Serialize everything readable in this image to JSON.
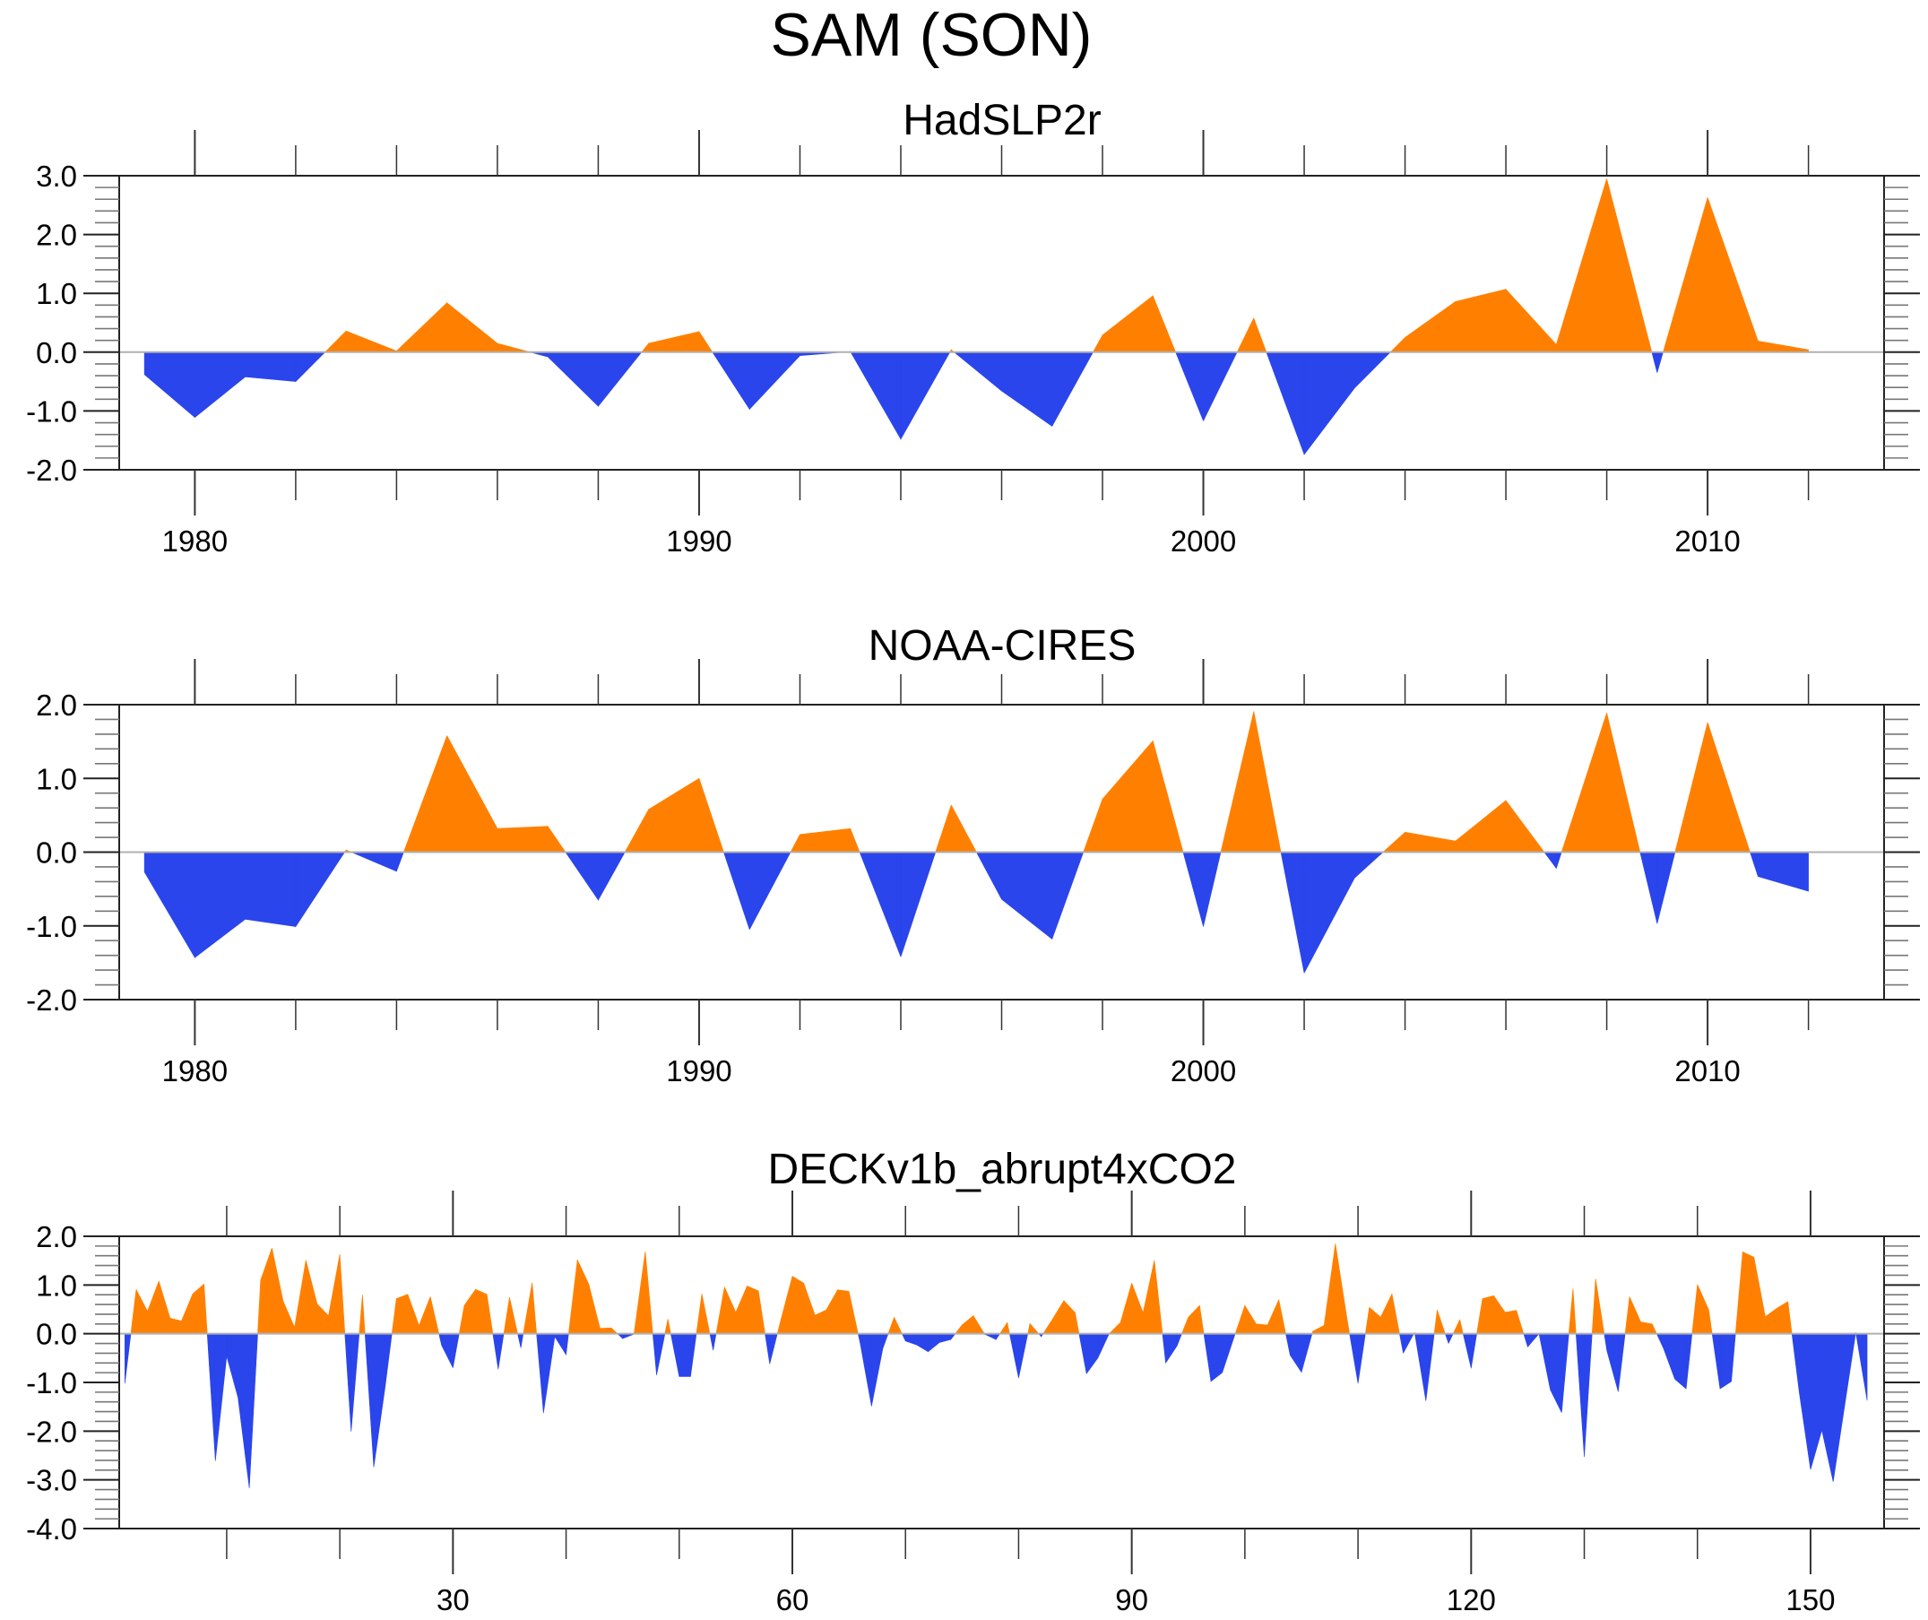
{
  "figure": {
    "title": "SAM (SON)",
    "colors": {
      "positive": "#FF8000",
      "negative": "#2A45EC",
      "zero_line": "#B0B0B0",
      "axis": "#222222"
    }
  },
  "chart_data": [
    {
      "type": "area",
      "title": "HadSLP2r",
      "xlabel": "",
      "ylabel": "",
      "xlim": [
        1978.5,
        2013.5
      ],
      "ylim": [
        -2.0,
        3.0
      ],
      "x_ticks_major": [
        1980,
        1990,
        2000,
        2010
      ],
      "x_tick_labels": [
        "1980",
        "1990",
        "2000",
        "2010"
      ],
      "x_minor_step": 2,
      "y_ticks_major": [
        -2.0,
        -1.0,
        0.0,
        1.0,
        2.0,
        3.0
      ],
      "y_tick_labels": [
        "-2.0",
        "-1.0",
        "0.0",
        "1.0",
        "2.0",
        "3.0"
      ],
      "y_minor_step": 0.2,
      "grid": false,
      "fill_above_zero": "positive",
      "fill_below_zero": "negative",
      "x": [
        1979,
        1980,
        1981,
        1982,
        1983,
        1984,
        1985,
        1986,
        1987,
        1988,
        1989,
        1990,
        1991,
        1992,
        1993,
        1994,
        1995,
        1996,
        1997,
        1998,
        1999,
        2000,
        2001,
        2002,
        2003,
        2004,
        2005,
        2006,
        2007,
        2008,
        2009,
        2010,
        2011,
        2012
      ],
      "values": [
        -0.38,
        -1.11,
        -0.42,
        -0.5,
        0.36,
        0.02,
        0.84,
        0.15,
        -0.08,
        -0.92,
        0.15,
        0.35,
        -0.97,
        -0.06,
        0.01,
        -1.48,
        0.04,
        -0.66,
        -1.26,
        0.29,
        0.96,
        -1.17,
        0.58,
        -1.74,
        -0.61,
        0.25,
        0.86,
        1.07,
        0.13,
        2.95,
        -0.35,
        2.63,
        0.19,
        0.04
      ]
    },
    {
      "type": "area",
      "title": "NOAA-CIRES",
      "xlabel": "",
      "ylabel": "",
      "xlim": [
        1978.5,
        2013.5
      ],
      "ylim": [
        -2.0,
        2.0
      ],
      "x_ticks_major": [
        1980,
        1990,
        2000,
        2010
      ],
      "x_tick_labels": [
        "1980",
        "1990",
        "2000",
        "2010"
      ],
      "x_minor_step": 2,
      "y_ticks_major": [
        -2.0,
        -1.0,
        0.0,
        1.0,
        2.0
      ],
      "y_tick_labels": [
        "-2.0",
        "-1.0",
        "0.0",
        "1.0",
        "2.0"
      ],
      "y_minor_step": 0.2,
      "grid": false,
      "fill_above_zero": "positive",
      "fill_below_zero": "negative",
      "x": [
        1979,
        1980,
        1981,
        1982,
        1983,
        1984,
        1985,
        1986,
        1987,
        1988,
        1989,
        1990,
        1991,
        1992,
        1993,
        1994,
        1995,
        1996,
        1997,
        1998,
        1999,
        2000,
        2001,
        2002,
        2003,
        2004,
        2005,
        2006,
        2007,
        2008,
        2009,
        2010,
        2011,
        2012
      ],
      "values": [
        -0.27,
        -1.43,
        -0.91,
        -1.01,
        0.03,
        -0.26,
        1.58,
        0.32,
        0.35,
        -0.65,
        0.58,
        1.0,
        -1.05,
        0.24,
        0.32,
        -1.42,
        0.64,
        -0.64,
        -1.18,
        0.72,
        1.51,
        -1.01,
        1.91,
        -1.64,
        -0.35,
        0.27,
        0.15,
        0.7,
        -0.22,
        1.89,
        -0.97,
        1.76,
        -0.33,
        -0.53
      ]
    },
    {
      "type": "area",
      "title": "DECKv1b_abrupt4xCO2",
      "xlabel": "",
      "ylabel": "",
      "xlim": [
        0.5,
        156.5
      ],
      "ylim": [
        -4.0,
        2.0
      ],
      "x_ticks_major": [
        30,
        60,
        90,
        120,
        150
      ],
      "x_tick_labels": [
        "30",
        "60",
        "90",
        "120",
        "150"
      ],
      "x_minor_step": 10,
      "y_ticks_major": [
        -4.0,
        -3.0,
        -2.0,
        -1.0,
        0.0,
        1.0,
        2.0
      ],
      "y_tick_labels": [
        "-4.0",
        "-3.0",
        "-2.0",
        "-1.0",
        "0.0",
        "1.0",
        "2.0"
      ],
      "y_minor_step": 0.2,
      "grid": false,
      "fill_above_zero": "positive",
      "fill_below_zero": "negative",
      "x_start": 1,
      "values": [
        -1.02,
        0.91,
        0.46,
        1.08,
        0.32,
        0.26,
        0.82,
        1.02,
        -2.61,
        -0.46,
        -1.31,
        -3.17,
        1.1,
        1.76,
        0.66,
        0.13,
        1.51,
        0.61,
        0.37,
        1.63,
        -2.01,
        0.8,
        -2.74,
        -1.1,
        0.72,
        0.81,
        0.17,
        0.76,
        -0.24,
        -0.7,
        0.58,
        0.91,
        0.81,
        -0.73,
        0.75,
        -0.29,
        1.05,
        -1.63,
        -0.06,
        -0.43,
        1.52,
        1.02,
        0.11,
        0.12,
        -0.1,
        -0.01,
        1.69,
        -0.85,
        0.3,
        -0.88,
        -0.88,
        0.82,
        -0.34,
        0.96,
        0.44,
        0.98,
        0.88,
        -0.62,
        0.3,
        1.18,
        1.04,
        0.38,
        0.49,
        0.9,
        0.87,
        -0.2,
        -1.49,
        -0.3,
        0.34,
        -0.15,
        -0.23,
        -0.37,
        -0.18,
        -0.12,
        0.18,
        0.37,
        -0.01,
        -0.12,
        0.23,
        -0.91,
        0.21,
        -0.06,
        0.3,
        0.68,
        0.43,
        -0.82,
        -0.5,
        0.0,
        0.23,
        1.04,
        0.43,
        1.51,
        -0.6,
        -0.25,
        0.34,
        0.58,
        -0.98,
        -0.8,
        -0.1,
        0.58,
        0.2,
        0.18,
        0.7,
        -0.44,
        -0.79,
        0.05,
        0.17,
        1.85,
        0.35,
        -1.02,
        0.54,
        0.34,
        0.82,
        -0.4,
        0.03,
        -1.38,
        0.49,
        -0.2,
        0.29,
        -0.71,
        0.72,
        0.78,
        0.44,
        0.48,
        -0.27,
        0.0,
        -1.15,
        -1.62,
        0.93,
        -2.53,
        1.13,
        -0.35,
        -1.19,
        0.76,
        0.24,
        0.2,
        -0.3,
        -0.93,
        -1.13,
        1.01,
        0.49,
        -1.13,
        -0.98,
        1.68,
        1.57,
        0.35,
        0.52,
        0.66,
        -1.2,
        -2.79,
        -1.98,
        -3.04,
        -1.5,
        0.03,
        -1.37
      ]
    }
  ]
}
